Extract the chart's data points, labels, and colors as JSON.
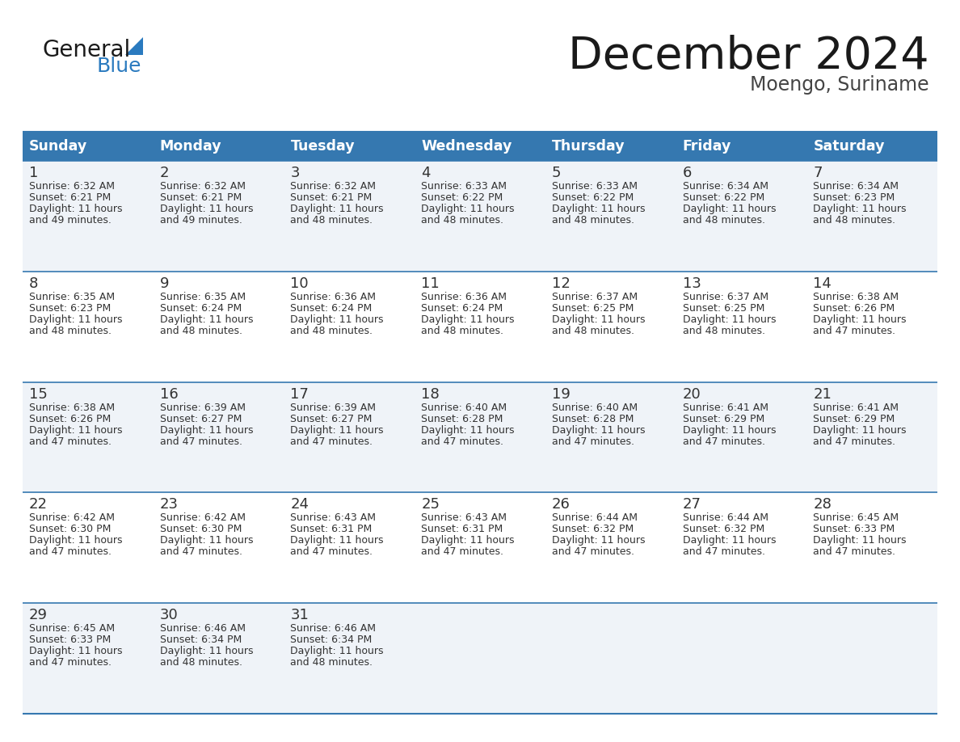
{
  "title": "December 2024",
  "subtitle": "Moengo, Suriname",
  "header_bg_color": "#3578b0",
  "header_text_color": "#ffffff",
  "day_names": [
    "Sunday",
    "Monday",
    "Tuesday",
    "Wednesday",
    "Thursday",
    "Friday",
    "Saturday"
  ],
  "row_bg_even": "#eff3f8",
  "row_bg_odd": "#ffffff",
  "cell_border_color": "#3578b0",
  "title_color": "#1a1a1a",
  "subtitle_color": "#444444",
  "day_number_color": "#333333",
  "cell_text_color": "#333333",
  "logo_general_color": "#1a1a1a",
  "logo_blue_color": "#2a7abf",
  "weeks": [
    [
      {
        "day": 1,
        "sunrise": "6:32 AM",
        "sunset": "6:21 PM",
        "daylight_hours": 11,
        "daylight_minutes": 49
      },
      {
        "day": 2,
        "sunrise": "6:32 AM",
        "sunset": "6:21 PM",
        "daylight_hours": 11,
        "daylight_minutes": 49
      },
      {
        "day": 3,
        "sunrise": "6:32 AM",
        "sunset": "6:21 PM",
        "daylight_hours": 11,
        "daylight_minutes": 48
      },
      {
        "day": 4,
        "sunrise": "6:33 AM",
        "sunset": "6:22 PM",
        "daylight_hours": 11,
        "daylight_minutes": 48
      },
      {
        "day": 5,
        "sunrise": "6:33 AM",
        "sunset": "6:22 PM",
        "daylight_hours": 11,
        "daylight_minutes": 48
      },
      {
        "day": 6,
        "sunrise": "6:34 AM",
        "sunset": "6:22 PM",
        "daylight_hours": 11,
        "daylight_minutes": 48
      },
      {
        "day": 7,
        "sunrise": "6:34 AM",
        "sunset": "6:23 PM",
        "daylight_hours": 11,
        "daylight_minutes": 48
      }
    ],
    [
      {
        "day": 8,
        "sunrise": "6:35 AM",
        "sunset": "6:23 PM",
        "daylight_hours": 11,
        "daylight_minutes": 48
      },
      {
        "day": 9,
        "sunrise": "6:35 AM",
        "sunset": "6:24 PM",
        "daylight_hours": 11,
        "daylight_minutes": 48
      },
      {
        "day": 10,
        "sunrise": "6:36 AM",
        "sunset": "6:24 PM",
        "daylight_hours": 11,
        "daylight_minutes": 48
      },
      {
        "day": 11,
        "sunrise": "6:36 AM",
        "sunset": "6:24 PM",
        "daylight_hours": 11,
        "daylight_minutes": 48
      },
      {
        "day": 12,
        "sunrise": "6:37 AM",
        "sunset": "6:25 PM",
        "daylight_hours": 11,
        "daylight_minutes": 48
      },
      {
        "day": 13,
        "sunrise": "6:37 AM",
        "sunset": "6:25 PM",
        "daylight_hours": 11,
        "daylight_minutes": 48
      },
      {
        "day": 14,
        "sunrise": "6:38 AM",
        "sunset": "6:26 PM",
        "daylight_hours": 11,
        "daylight_minutes": 47
      }
    ],
    [
      {
        "day": 15,
        "sunrise": "6:38 AM",
        "sunset": "6:26 PM",
        "daylight_hours": 11,
        "daylight_minutes": 47
      },
      {
        "day": 16,
        "sunrise": "6:39 AM",
        "sunset": "6:27 PM",
        "daylight_hours": 11,
        "daylight_minutes": 47
      },
      {
        "day": 17,
        "sunrise": "6:39 AM",
        "sunset": "6:27 PM",
        "daylight_hours": 11,
        "daylight_minutes": 47
      },
      {
        "day": 18,
        "sunrise": "6:40 AM",
        "sunset": "6:28 PM",
        "daylight_hours": 11,
        "daylight_minutes": 47
      },
      {
        "day": 19,
        "sunrise": "6:40 AM",
        "sunset": "6:28 PM",
        "daylight_hours": 11,
        "daylight_minutes": 47
      },
      {
        "day": 20,
        "sunrise": "6:41 AM",
        "sunset": "6:29 PM",
        "daylight_hours": 11,
        "daylight_minutes": 47
      },
      {
        "day": 21,
        "sunrise": "6:41 AM",
        "sunset": "6:29 PM",
        "daylight_hours": 11,
        "daylight_minutes": 47
      }
    ],
    [
      {
        "day": 22,
        "sunrise": "6:42 AM",
        "sunset": "6:30 PM",
        "daylight_hours": 11,
        "daylight_minutes": 47
      },
      {
        "day": 23,
        "sunrise": "6:42 AM",
        "sunset": "6:30 PM",
        "daylight_hours": 11,
        "daylight_minutes": 47
      },
      {
        "day": 24,
        "sunrise": "6:43 AM",
        "sunset": "6:31 PM",
        "daylight_hours": 11,
        "daylight_minutes": 47
      },
      {
        "day": 25,
        "sunrise": "6:43 AM",
        "sunset": "6:31 PM",
        "daylight_hours": 11,
        "daylight_minutes": 47
      },
      {
        "day": 26,
        "sunrise": "6:44 AM",
        "sunset": "6:32 PM",
        "daylight_hours": 11,
        "daylight_minutes": 47
      },
      {
        "day": 27,
        "sunrise": "6:44 AM",
        "sunset": "6:32 PM",
        "daylight_hours": 11,
        "daylight_minutes": 47
      },
      {
        "day": 28,
        "sunrise": "6:45 AM",
        "sunset": "6:33 PM",
        "daylight_hours": 11,
        "daylight_minutes": 47
      }
    ],
    [
      {
        "day": 29,
        "sunrise": "6:45 AM",
        "sunset": "6:33 PM",
        "daylight_hours": 11,
        "daylight_minutes": 47
      },
      {
        "day": 30,
        "sunrise": "6:46 AM",
        "sunset": "6:34 PM",
        "daylight_hours": 11,
        "daylight_minutes": 48
      },
      {
        "day": 31,
        "sunrise": "6:46 AM",
        "sunset": "6:34 PM",
        "daylight_hours": 11,
        "daylight_minutes": 48
      },
      null,
      null,
      null,
      null
    ]
  ]
}
